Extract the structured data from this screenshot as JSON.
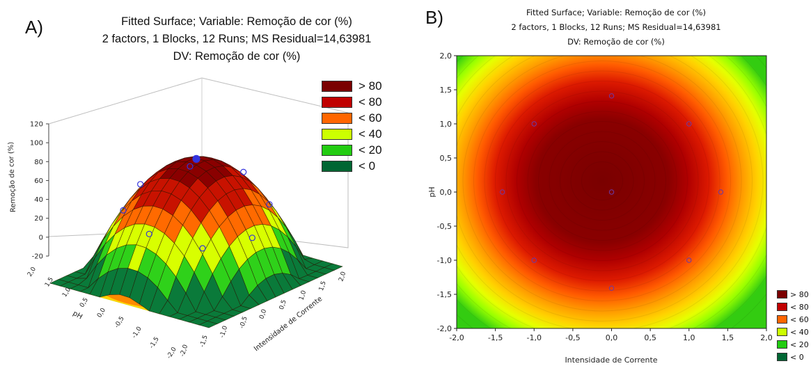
{
  "panels": {
    "a_label": "A)",
    "b_label": "B)"
  },
  "chart_data": [
    {
      "type": "surface-3d",
      "title_lines": [
        "Fitted Surface; Variable: Remoção de cor (%)",
        "2 factors, 1 Blocks, 12 Runs; MS Residual=14,63981",
        "DV: Remoção de cor (%)"
      ],
      "zlabel": "Remoção de cor (%)",
      "xlabel": "Intensidade de Corrente",
      "ylabel": "pH",
      "z_ticks": [
        "120",
        "100",
        "80",
        "60",
        "40",
        "20",
        "0",
        "-20"
      ],
      "zlim": [
        -20,
        120
      ],
      "x_ticks": [
        "2,0",
        "1,5",
        "1,0",
        "0,5",
        "0,0",
        "-0,5",
        "-1,0",
        "-1,5",
        "-2,0"
      ],
      "y_ticks": [
        "2,0",
        "1,5",
        "1,0",
        "0,5",
        "0,0",
        "-0,5",
        "-1,0",
        "-1,5",
        "-2,0"
      ],
      "model": {
        "max": 90,
        "center_x": -0.15,
        "center_y": 0.15,
        "a": 26,
        "b": 22
      },
      "legend": [
        {
          "label": "> 80",
          "color": "#7a0000"
        },
        {
          "label": "< 80",
          "color": "#c00000"
        },
        {
          "label": "< 60",
          "color": "#ff6600"
        },
        {
          "label": "< 40",
          "color": "#ccff00"
        },
        {
          "label": "< 20",
          "color": "#22cc11"
        },
        {
          "label": "< 0",
          "color": "#006633"
        }
      ]
    },
    {
      "type": "contour",
      "title_lines": [
        "Fitted Surface; Variable: Remoção de cor (%)",
        "2 factors, 1 Blocks, 12 Runs; MS Residual=14,63981",
        "DV: Remoção de cor (%)"
      ],
      "xlabel": "Intensidade de Corrente",
      "ylabel": "pH",
      "xlim": [
        -2.0,
        2.0
      ],
      "ylim": [
        -2.0,
        2.0
      ],
      "x_ticks": [
        "-2,0",
        "-1,5",
        "-1,0",
        "-0,5",
        "0,0",
        "0,5",
        "1,0",
        "1,5",
        "2,0"
      ],
      "y_ticks": [
        "2,0",
        "1,5",
        "1,0",
        "0,5",
        "0,0",
        "-0,5",
        "-1,0",
        "-1,5",
        "-2,0"
      ],
      "design_points": [
        {
          "x": 0,
          "y": 1.41
        },
        {
          "x": -1,
          "y": 1
        },
        {
          "x": 1,
          "y": 1
        },
        {
          "x": -1.41,
          "y": 0
        },
        {
          "x": 0,
          "y": 0
        },
        {
          "x": 1.41,
          "y": 0
        },
        {
          "x": -1,
          "y": -1
        },
        {
          "x": 1,
          "y": -1
        },
        {
          "x": 0,
          "y": -1.41
        }
      ],
      "legend": [
        {
          "label": "> 80",
          "color": "#7a0000"
        },
        {
          "label": "< 80",
          "color": "#c00000"
        },
        {
          "label": "< 60",
          "color": "#ff6600"
        },
        {
          "label": "< 40",
          "color": "#ccff00"
        },
        {
          "label": "< 20",
          "color": "#22cc11"
        },
        {
          "label": "< 0",
          "color": "#006633"
        }
      ]
    }
  ]
}
